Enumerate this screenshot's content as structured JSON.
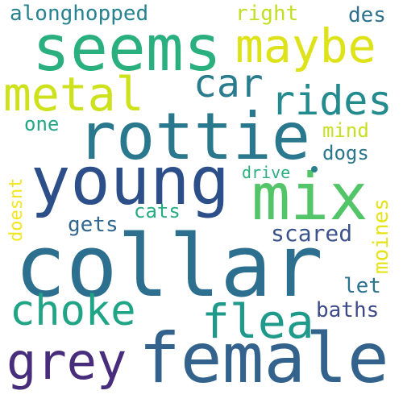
{
  "words": {
    "collar": {
      "text": "collar",
      "color": "#2c6f8e"
    },
    "female": {
      "text": "female",
      "color": "#33638d"
    },
    "young": {
      "text": "young",
      "color": "#2c4f8a"
    },
    "rottie": {
      "text": "rottie",
      "color": "#2a788e"
    },
    "seems": {
      "text": "seems",
      "color": "#2aaf7f"
    },
    "mix": {
      "text": "mix",
      "color": "#52c569"
    },
    "maybe": {
      "text": "maybe",
      "color": "#dde318"
    },
    "metal": {
      "text": "metal",
      "color": "#cde11d"
    },
    "grey": {
      "text": "grey",
      "color": "#472d7b"
    },
    "flea": {
      "text": "flea",
      "color": "#1f9a8a"
    },
    "choke": {
      "text": "choke",
      "color": "#20a486"
    },
    "car": {
      "text": "car",
      "color": "#287c8e"
    },
    "rides": {
      "text": "rides",
      "color": "#238a8d"
    },
    "alonghopped": {
      "text": "alonghopped",
      "color": "#26828e"
    },
    "right": {
      "text": "right",
      "color": "#c2df23"
    },
    "des": {
      "text": "des",
      "color": "#2d718e"
    },
    "one": {
      "text": "one",
      "color": "#22a884"
    },
    "mind": {
      "text": "mind",
      "color": "#c8e020"
    },
    "dogs": {
      "text": "dogs",
      "color": "#2a768e"
    },
    "drive": {
      "text": "drive",
      "color": "#29af7f"
    },
    "doesnt": {
      "text": "doesnt",
      "color": "#f3e61e"
    },
    "cats": {
      "text": "cats",
      "color": "#25ac82"
    },
    "gets": {
      "text": "gets",
      "color": "#31668e"
    },
    "scared": {
      "text": "scared",
      "color": "#3b528b"
    },
    "moines": {
      "text": "moines",
      "color": "#e5e419"
    },
    "let": {
      "text": "let",
      "color": "#2c728e"
    },
    "baths": {
      "text": "baths",
      "color": "#3e4989"
    }
  },
  "dot_color": "#2a7f8e",
  "background": "#ffffff"
}
